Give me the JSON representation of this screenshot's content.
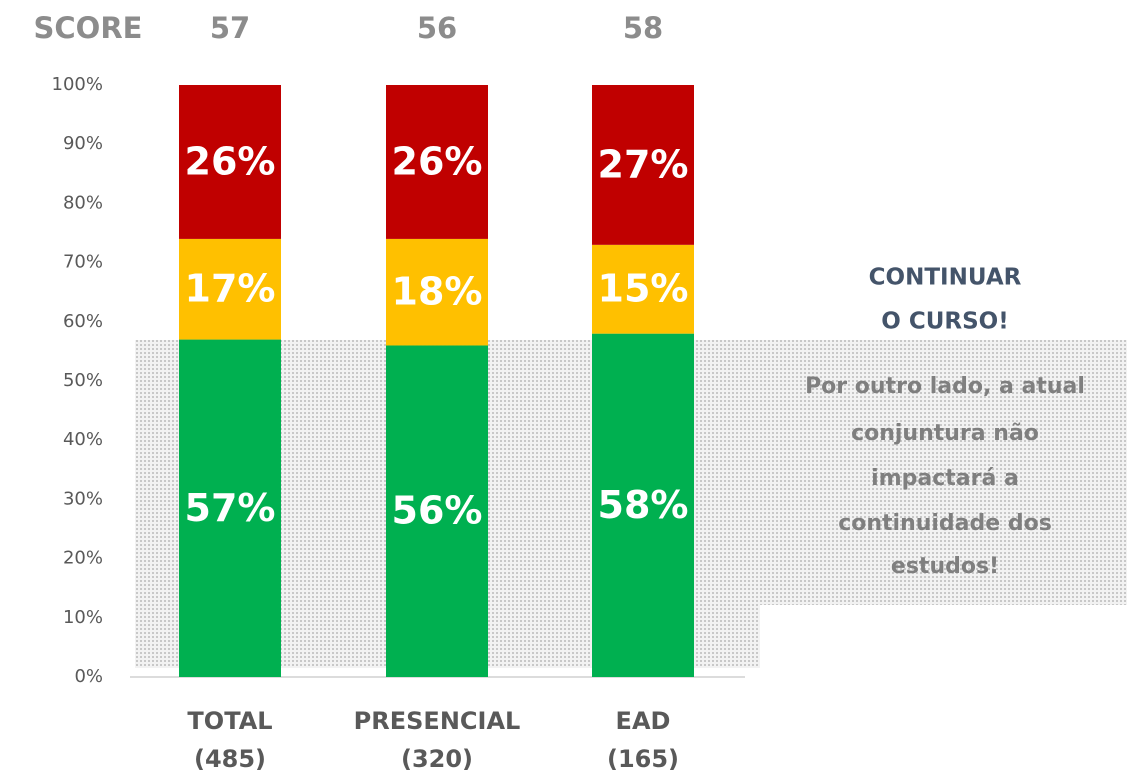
{
  "chart_data": {
    "type": "stacked_bar",
    "score_label": "SCORE",
    "scores": [
      57,
      56,
      58
    ],
    "categories": [
      "TOTAL",
      "PRESENCIAL",
      "EAD"
    ],
    "category_counts": [
      "(485)",
      "(320)",
      "(165)"
    ],
    "series": [
      {
        "color": "#00b050",
        "values": [
          57,
          56,
          58
        ],
        "value_labels": [
          "57%",
          "56%",
          "58%"
        ]
      },
      {
        "color": "#ffc000",
        "values": [
          17,
          18,
          15
        ],
        "value_labels": [
          "17%",
          "18%",
          "15%"
        ]
      },
      {
        "color": "#c00000",
        "values": [
          26,
          26,
          27
        ],
        "value_labels": [
          "26%",
          "26%",
          "27%"
        ]
      }
    ],
    "ylim": [
      0,
      100
    ],
    "yticks": [
      {
        "value": 0,
        "label": "0%"
      },
      {
        "value": 10,
        "label": "10%"
      },
      {
        "value": 20,
        "label": "20%"
      },
      {
        "value": 30,
        "label": "30%"
      },
      {
        "value": 40,
        "label": "40%"
      },
      {
        "value": 50,
        "label": "50%"
      },
      {
        "value": 60,
        "label": "60%"
      },
      {
        "value": 70,
        "label": "70%"
      },
      {
        "value": 80,
        "label": "80%"
      },
      {
        "value": 90,
        "label": "90%"
      },
      {
        "value": 100,
        "label": "100%"
      }
    ],
    "annotation": {
      "title_lines": [
        "CONTINUAR",
        "O CURSO!"
      ],
      "body_lines": [
        "Por outro lado, a atual",
        "conjuntura não",
        "impactará a",
        "continuidade dos",
        "estudos!"
      ]
    }
  }
}
